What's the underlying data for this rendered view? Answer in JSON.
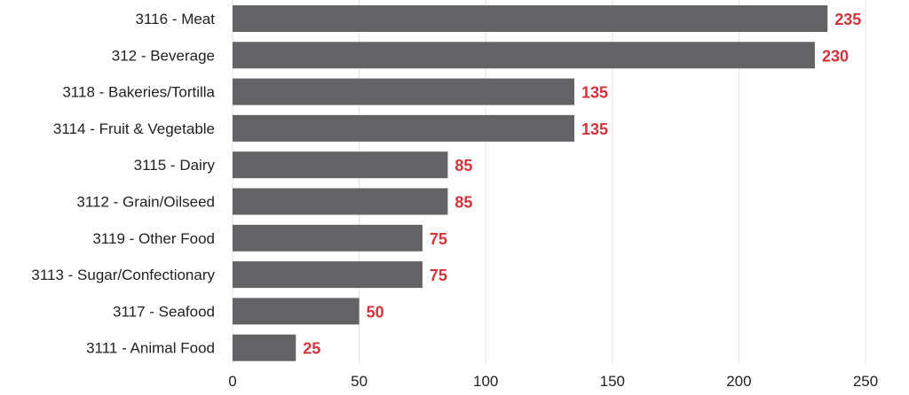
{
  "chart_data": {
    "type": "bar",
    "orientation": "horizontal",
    "categories": [
      "3116 - Meat",
      "312 - Beverage",
      "3118 - Bakeries/Tortilla",
      "3114 - Fruit & Vegetable",
      "3115 - Dairy",
      "3112 - Grain/Oilseed",
      "3119 - Other Food",
      "3113 - Sugar/Confectionary",
      "3117 - Seafood",
      "3111 - Animal Food"
    ],
    "values": [
      235,
      230,
      135,
      135,
      85,
      85,
      75,
      75,
      50,
      25
    ],
    "value_labels": [
      "235",
      "230",
      "135",
      "135",
      "85",
      "85",
      "75",
      "75",
      "50",
      "25"
    ],
    "xlim": [
      0,
      250
    ],
    "xticks": [
      0,
      50,
      100,
      150,
      200,
      250
    ],
    "xtick_labels": [
      "0",
      "50",
      "100",
      "150",
      "200",
      "250"
    ],
    "grid": "vertical",
    "legend": "none",
    "colors": {
      "bar": "#636365",
      "value_label": "#d0343a"
    }
  }
}
